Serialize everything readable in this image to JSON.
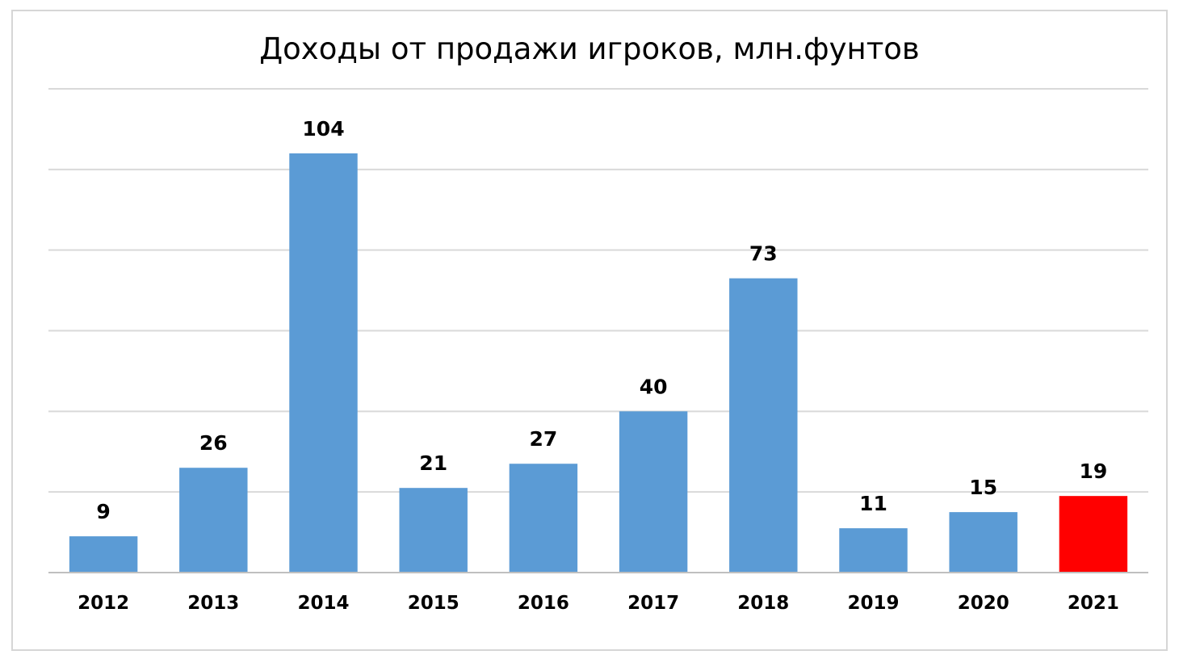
{
  "chart_data": {
    "type": "bar",
    "title": "Доходы от продажи игроков, млн.фунтов",
    "categories": [
      "2012",
      "2013",
      "2014",
      "2015",
      "2016",
      "2017",
      "2018",
      "2019",
      "2020",
      "2021"
    ],
    "values": [
      9,
      26,
      104,
      21,
      27,
      40,
      73,
      11,
      15,
      19
    ],
    "data_labels": [
      "9",
      "26",
      "104",
      "21",
      "27",
      "40",
      "73",
      "11",
      "15",
      "19"
    ],
    "xlabel": "",
    "ylabel": "",
    "ylim": [
      0,
      120
    ],
    "ytick_step": 20,
    "y_axis_labels_visible": false,
    "grid": true,
    "legend": false,
    "colors": {
      "bar": "#5b9bd5",
      "highlight": "#ff0000",
      "grid": "#d9d9d9",
      "axis": "#bfbfbf"
    },
    "highlight_categories": [
      "2021"
    ]
  }
}
